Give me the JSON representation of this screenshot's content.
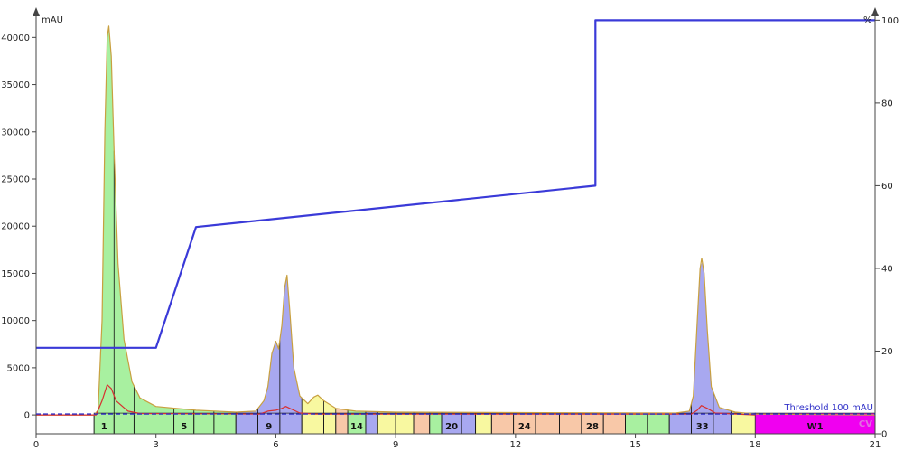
{
  "chart_data": {
    "type": "line",
    "ylabel_left": "mAU",
    "ylabel_right": "%",
    "xlim": [
      0,
      21
    ],
    "ylim_left": [
      -2000,
      43000
    ],
    "ylim_right": [
      0,
      102.7
    ],
    "x_ticks": [
      0,
      3,
      6,
      9,
      12,
      15,
      18,
      21
    ],
    "y_left_ticks": [
      0,
      5000,
      10000,
      15000,
      20000,
      25000,
      30000,
      35000,
      40000
    ],
    "y_right_ticks": [
      0,
      20,
      40,
      60,
      80,
      100
    ],
    "threshold": {
      "value": 100,
      "label": "Threshold 100 mAU",
      "color": "#3030c8"
    },
    "series": [
      {
        "id": "uv",
        "color": "#c8a040",
        "points": [
          [
            0,
            0
          ],
          [
            1.45,
            0
          ],
          [
            1.55,
            500
          ],
          [
            1.65,
            10000
          ],
          [
            1.72,
            30000
          ],
          [
            1.78,
            40000
          ],
          [
            1.82,
            41200
          ],
          [
            1.88,
            38000
          ],
          [
            1.95,
            28000
          ],
          [
            2.05,
            16000
          ],
          [
            2.2,
            8000
          ],
          [
            2.4,
            3500
          ],
          [
            2.6,
            1800
          ],
          [
            3.0,
            900
          ],
          [
            4.0,
            500
          ],
          [
            5.0,
            300
          ],
          [
            5.5,
            400
          ],
          [
            5.7,
            1500
          ],
          [
            5.8,
            3000
          ],
          [
            5.9,
            6500
          ],
          [
            6.0,
            7800
          ],
          [
            6.07,
            7000
          ],
          [
            6.15,
            9500
          ],
          [
            6.22,
            13500
          ],
          [
            6.28,
            14800
          ],
          [
            6.35,
            11000
          ],
          [
            6.45,
            5000
          ],
          [
            6.6,
            2000
          ],
          [
            6.8,
            1200
          ],
          [
            6.95,
            1900
          ],
          [
            7.05,
            2100
          ],
          [
            7.2,
            1500
          ],
          [
            7.5,
            700
          ],
          [
            8.0,
            400
          ],
          [
            9.0,
            300
          ],
          [
            12.0,
            250
          ],
          [
            16.0,
            200
          ],
          [
            16.35,
            400
          ],
          [
            16.45,
            2000
          ],
          [
            16.55,
            10000
          ],
          [
            16.62,
            15500
          ],
          [
            16.66,
            16600
          ],
          [
            16.72,
            15000
          ],
          [
            16.8,
            9000
          ],
          [
            16.9,
            3000
          ],
          [
            17.1,
            800
          ],
          [
            17.5,
            300
          ],
          [
            18.0,
            100
          ],
          [
            21.0,
            0
          ]
        ]
      },
      {
        "id": "uv2",
        "color": "#d83030",
        "points": [
          [
            0,
            0
          ],
          [
            1.5,
            0
          ],
          [
            1.65,
            1500
          ],
          [
            1.78,
            3200
          ],
          [
            1.88,
            2800
          ],
          [
            2.0,
            1500
          ],
          [
            2.3,
            400
          ],
          [
            2.6,
            150
          ],
          [
            5.6,
            100
          ],
          [
            5.8,
            400
          ],
          [
            6.0,
            500
          ],
          [
            6.15,
            700
          ],
          [
            6.25,
            900
          ],
          [
            6.35,
            700
          ],
          [
            6.6,
            200
          ],
          [
            7.0,
            100
          ],
          [
            16.4,
            100
          ],
          [
            16.55,
            500
          ],
          [
            16.65,
            1000
          ],
          [
            16.8,
            700
          ],
          [
            17.0,
            200
          ],
          [
            18.0,
            0
          ]
        ]
      },
      {
        "id": "gradient",
        "axis": "right",
        "color": "#3a3ad8",
        "points": [
          [
            0,
            20.8
          ],
          [
            3.0,
            20.8
          ],
          [
            4.0,
            50
          ],
          [
            14.0,
            60
          ],
          [
            14.0,
            100
          ],
          [
            21.0,
            100
          ]
        ]
      }
    ],
    "fractions": [
      {
        "start": 1.45,
        "end": 1.95,
        "color": "#a8f0a0",
        "label": "1"
      },
      {
        "start": 1.95,
        "end": 2.45,
        "color": "#a8f0a0",
        "label": ""
      },
      {
        "start": 2.45,
        "end": 2.95,
        "color": "#a8f0a0",
        "label": ""
      },
      {
        "start": 2.95,
        "end": 3.45,
        "color": "#a8f0a0",
        "label": ""
      },
      {
        "start": 3.45,
        "end": 3.95,
        "color": "#a8f0a0",
        "label": "5"
      },
      {
        "start": 3.95,
        "end": 4.45,
        "color": "#a8f0a0",
        "label": ""
      },
      {
        "start": 4.45,
        "end": 5.0,
        "color": "#a8f0a0",
        "label": ""
      },
      {
        "start": 5.0,
        "end": 5.55,
        "color": "#a8a8f0",
        "label": ""
      },
      {
        "start": 5.55,
        "end": 6.1,
        "color": "#a8a8f0",
        "label": "9"
      },
      {
        "start": 6.1,
        "end": 6.65,
        "color": "#a8a8f0",
        "label": ""
      },
      {
        "start": 6.65,
        "end": 7.2,
        "color": "#f8f8a0",
        "label": ""
      },
      {
        "start": 7.2,
        "end": 7.5,
        "color": "#f8f8a0",
        "label": ""
      },
      {
        "start": 7.5,
        "end": 7.8,
        "color": "#f8c8a8",
        "label": ""
      },
      {
        "start": 7.8,
        "end": 8.25,
        "color": "#a8f0a0",
        "label": "14"
      },
      {
        "start": 8.25,
        "end": 8.55,
        "color": "#a8a8f0",
        "label": ""
      },
      {
        "start": 8.55,
        "end": 9.0,
        "color": "#f8f8a0",
        "label": ""
      },
      {
        "start": 9.0,
        "end": 9.45,
        "color": "#f8f8a0",
        "label": ""
      },
      {
        "start": 9.45,
        "end": 9.85,
        "color": "#f8c8a8",
        "label": ""
      },
      {
        "start": 9.85,
        "end": 10.15,
        "color": "#a8f0a0",
        "label": ""
      },
      {
        "start": 10.15,
        "end": 10.65,
        "color": "#a8a8f0",
        "label": "20"
      },
      {
        "start": 10.65,
        "end": 11.0,
        "color": "#a8a8f0",
        "label": ""
      },
      {
        "start": 11.0,
        "end": 11.4,
        "color": "#f8f8a0",
        "label": ""
      },
      {
        "start": 11.4,
        "end": 11.95,
        "color": "#f8c8a8",
        "label": ""
      },
      {
        "start": 11.95,
        "end": 12.5,
        "color": "#f8c8a8",
        "label": "24"
      },
      {
        "start": 12.5,
        "end": 13.1,
        "color": "#f8c8a8",
        "label": ""
      },
      {
        "start": 13.1,
        "end": 13.65,
        "color": "#f8c8a8",
        "label": ""
      },
      {
        "start": 13.65,
        "end": 14.2,
        "color": "#f8c8a8",
        "label": "28"
      },
      {
        "start": 14.2,
        "end": 14.75,
        "color": "#f8c8a8",
        "label": ""
      },
      {
        "start": 14.75,
        "end": 15.3,
        "color": "#a8f0a0",
        "label": ""
      },
      {
        "start": 15.3,
        "end": 15.85,
        "color": "#a8f0a0",
        "label": ""
      },
      {
        "start": 15.85,
        "end": 16.4,
        "color": "#a8a8f0",
        "label": ""
      },
      {
        "start": 16.4,
        "end": 16.95,
        "color": "#a8a8f0",
        "label": "33"
      },
      {
        "start": 16.95,
        "end": 17.4,
        "color": "#a8a8f0",
        "label": ""
      },
      {
        "start": 17.4,
        "end": 18.0,
        "color": "#f8f8a0",
        "label": ""
      }
    ],
    "waste": [
      {
        "start": 18.0,
        "end": 21.0,
        "color": "#f000f0",
        "label": "W1"
      }
    ],
    "end_marker": {
      "x": 21.0,
      "label": "CV",
      "color": "#e070e0"
    }
  }
}
